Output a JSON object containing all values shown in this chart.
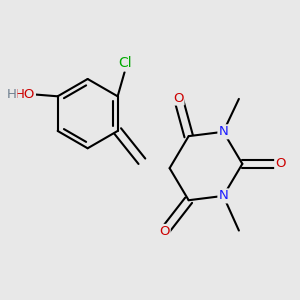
{
  "background_color": "#e8e8e8",
  "bond_color": "#000000",
  "bond_width": 1.5,
  "atom_colors": {
    "C": "#000000",
    "N": "#1a1aff",
    "O": "#cc0000",
    "Cl": "#00aa00",
    "H": "#708090"
  },
  "font_size": 9.5,
  "fig_size": [
    3.0,
    3.0
  ],
  "dpi": 100,
  "xlim": [
    -1.7,
    1.7
  ],
  "ylim": [
    -1.7,
    1.7
  ]
}
